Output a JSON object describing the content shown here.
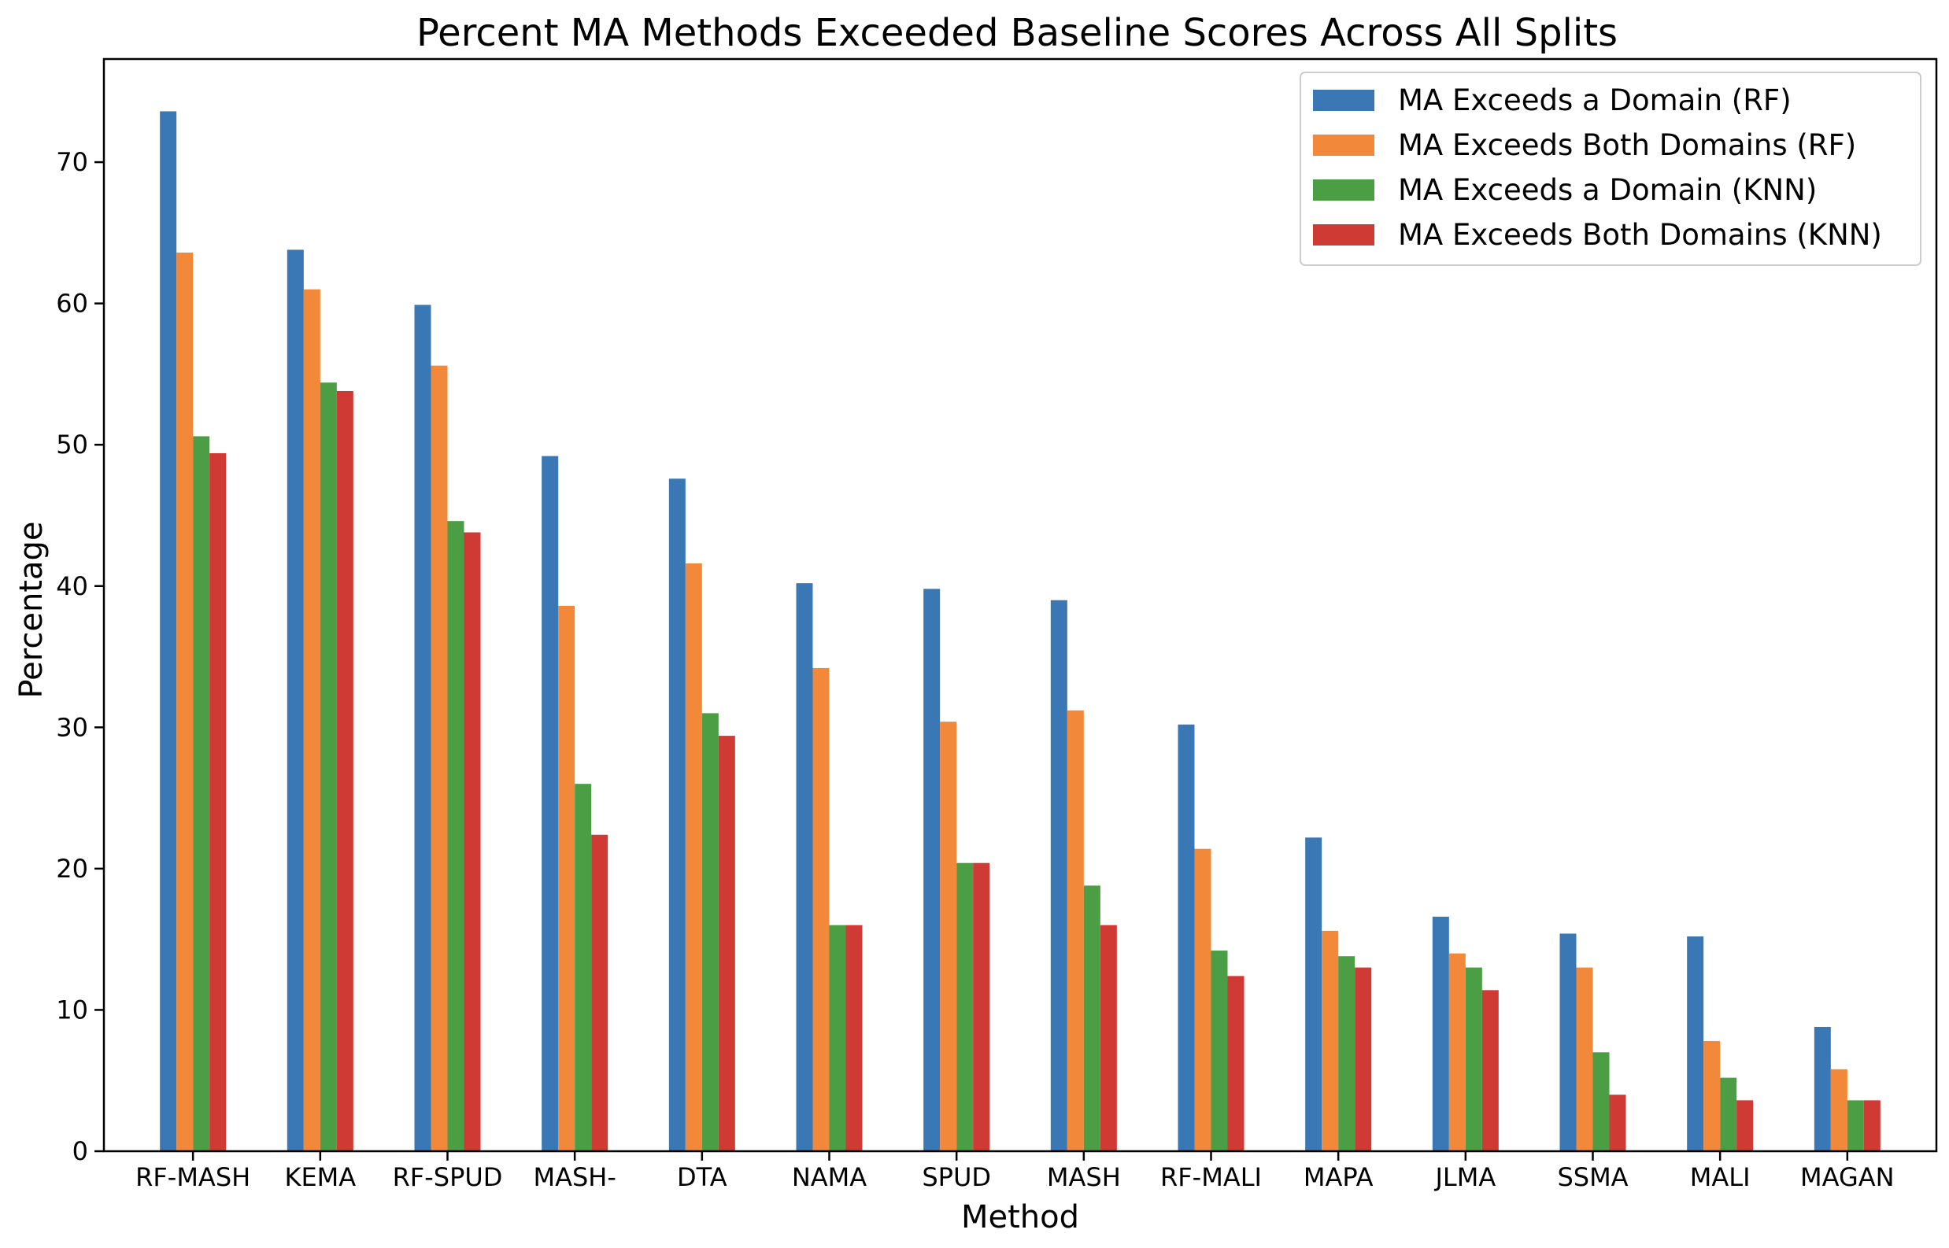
{
  "chart_data": {
    "type": "bar",
    "title": "Percent MA Methods Exceeded Baseline Scores Across All Splits",
    "xlabel": "Method",
    "ylabel": "Percentage",
    "ylim": [
      0,
      77.3
    ],
    "yticks": [
      0,
      10,
      20,
      30,
      40,
      50,
      60,
      70
    ],
    "grid": false,
    "legend_position": "top-right",
    "categories": [
      "RF-MASH",
      "KEMA",
      "RF-SPUD",
      "MASH-",
      "DTA",
      "NAMA",
      "SPUD",
      "MASH",
      "RF-MALI",
      "MAPA",
      "JLMA",
      "SSMA",
      "MALI",
      "MAGAN"
    ],
    "series": [
      {
        "name": "MA Exceeds a Domain (RF)",
        "color": "#3a78b5",
        "values": [
          73.6,
          63.8,
          59.9,
          49.2,
          47.6,
          40.2,
          39.8,
          39.0,
          30.2,
          22.2,
          16.6,
          15.4,
          15.2,
          8.8
        ]
      },
      {
        "name": "MA Exceeds Both Domains (RF)",
        "color": "#f2883a",
        "values": [
          63.6,
          61.0,
          55.6,
          38.6,
          41.6,
          34.2,
          30.4,
          31.2,
          21.4,
          15.6,
          14.0,
          13.0,
          7.8,
          5.8
        ]
      },
      {
        "name": "MA Exceeds a Domain (KNN)",
        "color": "#4b9e43",
        "values": [
          50.6,
          54.4,
          44.6,
          26.0,
          31.0,
          16.0,
          20.4,
          18.8,
          14.2,
          13.8,
          13.0,
          7.0,
          5.2,
          3.6
        ]
      },
      {
        "name": "MA Exceeds Both Domains (KNN)",
        "color": "#cf3a35",
        "values": [
          49.4,
          53.8,
          43.8,
          22.4,
          29.4,
          16.0,
          20.4,
          16.0,
          12.4,
          13.0,
          11.4,
          4.0,
          3.6,
          3.6
        ]
      }
    ]
  }
}
